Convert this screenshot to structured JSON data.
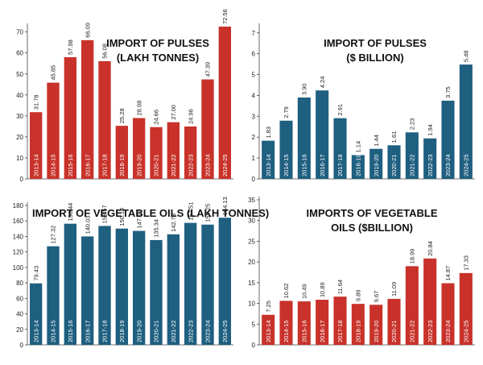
{
  "chart_data": [
    {
      "type": "bar",
      "title_lines": [
        "IMPORT OF PULSES",
        "(LAKH TONNES)"
      ],
      "categories": [
        "2013-14",
        "2014-15",
        "2015-16",
        "2016-17",
        "2017-18",
        "2018-19",
        "2019-20",
        "2020-21",
        "2021-22",
        "2022-23",
        "2023-24",
        "2024-25"
      ],
      "values": [
        31.78,
        45.85,
        57.98,
        66.09,
        56.08,
        25.28,
        28.98,
        24.66,
        27.0,
        24.96,
        47.39,
        72.56
      ],
      "value_labels": [
        "31.78",
        "45.85",
        "57.98",
        "66.09",
        "56.08",
        "25.28",
        "28.98",
        "24.66",
        "27.00",
        "24.96",
        "47.39",
        "72.56"
      ],
      "yticks": [
        "0",
        "10",
        "20",
        "30",
        "40",
        "50",
        "60",
        "70"
      ],
      "ylim": [
        0,
        72.56
      ],
      "color": "#c8322a",
      "grid": false,
      "xlabel": "",
      "ylabel": ""
    },
    {
      "type": "bar",
      "title_lines": [
        "IMPORT OF PULSES",
        "($ BILLION)"
      ],
      "categories": [
        "2013-14",
        "2014-15",
        "2015-16",
        "2016-17",
        "2017-18",
        "2018-19",
        "2019-20",
        "2020-21",
        "2021-22",
        "2022-23",
        "2023-24",
        "2024-25"
      ],
      "values": [
        1.83,
        2.79,
        3.9,
        4.24,
        2.91,
        1.14,
        1.44,
        1.61,
        2.23,
        1.94,
        3.75,
        5.48
      ],
      "value_labels": [
        "1.83",
        "2.79",
        "3.90",
        "4.24",
        "2.91",
        "1.14",
        "1.44",
        "1.61",
        "2.23",
        "1.94",
        "3.75",
        "5.48"
      ],
      "yticks": [
        "0",
        "1",
        "2",
        "3",
        "4",
        "5",
        "6",
        "7"
      ],
      "ylim": [
        0,
        7.3
      ],
      "color": "#1f5f80",
      "grid": false,
      "xlabel": "",
      "ylabel": ""
    },
    {
      "type": "bar",
      "title_lines": [
        "IMPORT OF VEGETABLE OILS (LAKH TONNES)"
      ],
      "categories": [
        "2013-14",
        "2014-15",
        "2015-16",
        "2016-17",
        "2017-18",
        "2018-19",
        "2019-20",
        "2020-21",
        "2021-22",
        "2022-23",
        "2023-24",
        "2024-25"
      ],
      "values": [
        79.43,
        127.32,
        156.44,
        140.03,
        153.57,
        150.14,
        147.17,
        135.34,
        142.73,
        157.51,
        155.25,
        164.13
      ],
      "value_labels": [
        "79.43",
        "127.32",
        "156.44",
        "140.03",
        "153.57",
        "150.14",
        "147.17",
        "135.34",
        "142.73",
        "157.51",
        "155.25",
        "164.13"
      ],
      "yticks": [
        "0",
        "20",
        "40",
        "60",
        "80",
        "100",
        "120",
        "140",
        "160",
        "180"
      ],
      "ylim": [
        0,
        180
      ],
      "color": "#1f5f80",
      "grid": false,
      "xlabel": "",
      "ylabel": ""
    },
    {
      "type": "bar",
      "title_lines": [
        "IMPORTS OF VEGETABLE",
        "OILS ($BILLION)"
      ],
      "categories": [
        "2013-14",
        "2014-15",
        "2015-16",
        "2016-17",
        "2017-18",
        "2018-19",
        "2019-20",
        "2020-21",
        "2021-22",
        "2022-23",
        "2023-24",
        "2024-25"
      ],
      "values": [
        7.25,
        10.62,
        10.49,
        10.89,
        11.64,
        9.89,
        9.67,
        11.09,
        18.99,
        20.84,
        14.87,
        17.33
      ],
      "value_labels": [
        "7.25",
        "10.62",
        "10.49",
        "10.89",
        "11.64",
        "9.89",
        "9.67",
        "11.09",
        "18.99",
        "20.84",
        "14.87",
        "17.33"
      ],
      "yticks": [
        "0",
        "5",
        "10",
        "15",
        "20",
        "25",
        "30",
        "35"
      ],
      "ylim": [
        0,
        35
      ],
      "color": "#c8322a",
      "grid": false,
      "xlabel": "",
      "ylabel": ""
    }
  ]
}
